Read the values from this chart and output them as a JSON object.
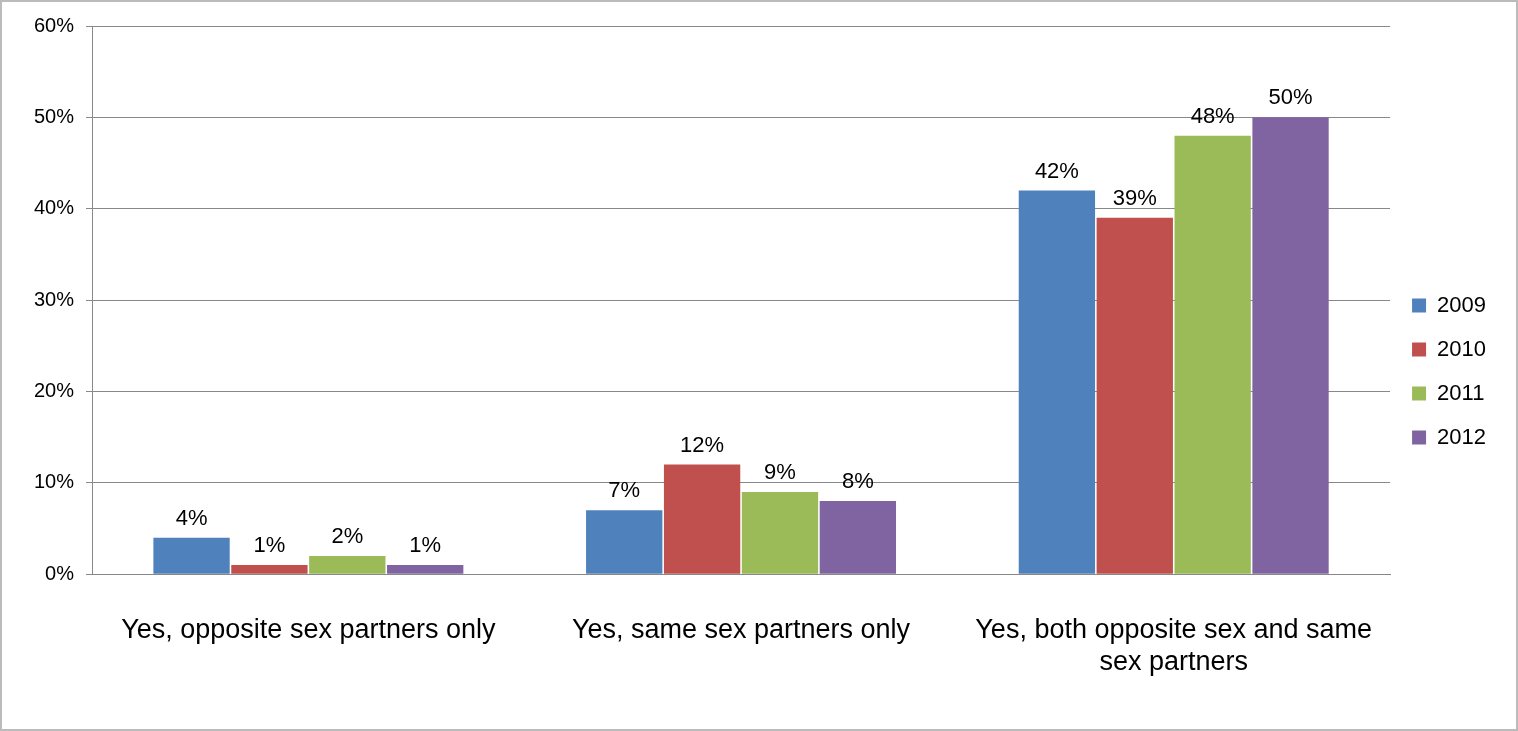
{
  "chart_data": {
    "type": "bar",
    "categories": [
      "Yes, opposite sex partners only",
      "Yes, same sex partners only",
      "Yes, both opposite sex and same sex partners"
    ],
    "series": [
      {
        "name": "2009",
        "color": "#4f81bd",
        "values": [
          4,
          7,
          42
        ],
        "value_labels": [
          "4%",
          "7%",
          "42%"
        ]
      },
      {
        "name": "2010",
        "color": "#c0504d",
        "values": [
          1,
          12,
          39
        ],
        "value_labels": [
          "1%",
          "12%",
          "39%"
        ]
      },
      {
        "name": "2011",
        "color": "#9bbb59",
        "values": [
          2,
          9,
          48
        ],
        "value_labels": [
          "2%",
          "9%",
          "48%"
        ]
      },
      {
        "name": "2012",
        "color": "#8064a2",
        "values": [
          1,
          8,
          50
        ],
        "value_labels": [
          "1%",
          "8%",
          "50%"
        ]
      }
    ],
    "ylim": [
      0,
      60
    ],
    "yticks": [
      {
        "value": 0,
        "label": "0%"
      },
      {
        "value": 10,
        "label": "10%"
      },
      {
        "value": 20,
        "label": "20%"
      },
      {
        "value": 30,
        "label": "30%"
      },
      {
        "value": 40,
        "label": "40%"
      },
      {
        "value": 50,
        "label": "50%"
      },
      {
        "value": 60,
        "label": "60%"
      }
    ],
    "grid": "y",
    "legend": "right"
  }
}
